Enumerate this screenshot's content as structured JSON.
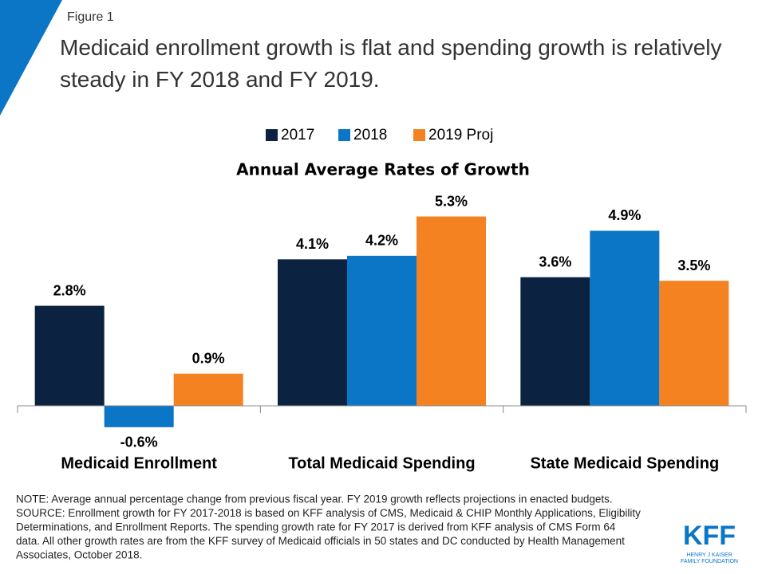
{
  "figure_label": "Figure 1",
  "chart_data": {
    "type": "bar",
    "title": "Medicaid enrollment growth is flat and spending growth is relatively steady in FY 2018 and FY 2019.",
    "subtitle": "Annual Average Rates of Growth",
    "categories": [
      "Medicaid Enrollment",
      "Total Medicaid Spending",
      "State Medicaid Spending"
    ],
    "series": [
      {
        "name": "2017",
        "color": "#0b2340",
        "values": [
          2.8,
          4.1,
          3.6
        ],
        "value_labels": [
          "2.8%",
          "4.1%",
          "3.6%"
        ]
      },
      {
        "name": "2018",
        "color": "#0b76c5",
        "values": [
          -0.6,
          4.2,
          4.9
        ],
        "value_labels": [
          "-0.6%",
          "4.2%",
          "4.9%"
        ]
      },
      {
        "name": "2019 Proj",
        "color": "#f58220",
        "values": [
          0.9,
          5.3,
          3.5
        ],
        "value_labels": [
          "0.9%",
          "5.3%",
          "3.5%"
        ]
      }
    ],
    "legend": "top"
  },
  "notes": [
    "NOTE: Average annual percentage change from previous fiscal year. FY 2019 growth reflects projections in enacted budgets.",
    "SOURCE: Enrollment growth for FY 2017-2018 is based on KFF analysis of CMS, Medicaid & CHIP Monthly Applications, Eligibility",
    "Determinations, and Enrollment Reports.  The spending growth rate for FY 2017 is derived from KFF analysis of CMS Form 64",
    "data. All other growth rates are from the KFF survey of Medicaid officials in 50 states and DC conducted by Health Management",
    "Associates, October 2018."
  ],
  "logo": {
    "name": "KFF",
    "line1": "HENRY J KAISER",
    "line2": "FAMILY FOUNDATION"
  }
}
